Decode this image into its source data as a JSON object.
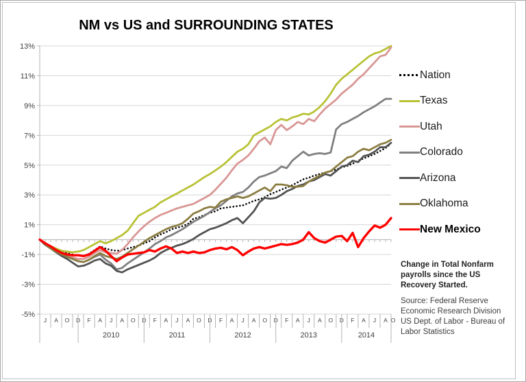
{
  "title": "NM vs US and SURROUNDING STATES",
  "annotation_note": "Change in Total Nonfarm payrolls since the US Recovery Started.",
  "source_note": "Source: Federal Reserve Economic Research Division US Dept. of Labor - Bureau of Labor Statistics",
  "legend": [
    {
      "id": "nation",
      "label": "Nation",
      "color": "#000000",
      "style": "dotted",
      "bold": false
    },
    {
      "id": "texas",
      "label": "Texas",
      "color": "#b8c234",
      "style": "solid",
      "bold": false
    },
    {
      "id": "utah",
      "label": "Utah",
      "color": "#d89694",
      "style": "solid",
      "bold": false
    },
    {
      "id": "colorado",
      "label": "Colorado",
      "color": "#7f7f7f",
      "style": "solid",
      "bold": false
    },
    {
      "id": "arizona",
      "label": "Arizona",
      "color": "#525252",
      "style": "solid",
      "bold": false
    },
    {
      "id": "oklahoma",
      "label": "Oklahoma",
      "color": "#8b7d41",
      "style": "solid",
      "bold": false
    },
    {
      "id": "new-mexico",
      "label": "New Mexico",
      "color": "#fe0000",
      "style": "solid",
      "bold": true
    }
  ],
  "chart_data": {
    "type": "line",
    "title": "NM vs US and SURROUNDING STATES",
    "x_frequency": "monthly",
    "x_range": "Jun 2009 - Oct 2014",
    "ylim": [
      -5,
      13
    ],
    "grid_on": true,
    "legend_position": "right",
    "grid_color": "#d6d6d6",
    "axis_color": "#b3b3b3",
    "yticks": [
      {
        "label": "13%",
        "value": 13
      },
      {
        "label": "11%",
        "value": 11
      },
      {
        "label": "9%",
        "value": 9
      },
      {
        "label": "7%",
        "value": 7
      },
      {
        "label": "5%",
        "value": 5
      },
      {
        "label": "3%",
        "value": 3
      },
      {
        "label": "1%",
        "value": 1
      },
      {
        "label": "-1%",
        "value": -1
      },
      {
        "label": "-3%",
        "value": -3
      },
      {
        "label": "-5%",
        "value": -5
      }
    ],
    "month_labels": [
      "J",
      "A",
      "O",
      "D",
      "F",
      "A",
      "J",
      "A",
      "O",
      "D",
      "F",
      "A",
      "J",
      "A",
      "O",
      "D",
      "F",
      "A",
      "J",
      "A",
      "O",
      "D",
      "F",
      "A",
      "J",
      "A",
      "O",
      "D",
      "F",
      "A",
      "J",
      "A",
      "O"
    ],
    "years": [
      {
        "label": "2010",
        "from_month": 7,
        "to_month": 19
      },
      {
        "label": "2011",
        "from_month": 19,
        "to_month": 31
      },
      {
        "label": "2012",
        "from_month": 31,
        "to_month": 43
      },
      {
        "label": "2013",
        "from_month": 43,
        "to_month": 55
      },
      {
        "label": "2014",
        "from_month": 55,
        "to_month": 64
      }
    ],
    "series": [
      {
        "id": "nation",
        "name": "Nation",
        "color": "#000000",
        "dotted": true,
        "width": 2.6,
        "values": [
          0,
          -0.3,
          -0.5,
          -0.65,
          -0.8,
          -0.9,
          -1,
          -1.05,
          -1.1,
          -0.95,
          -0.7,
          -0.45,
          -0.6,
          -0.7,
          -0.75,
          -0.7,
          -0.6,
          -0.5,
          -0.4,
          -0.25,
          -0.1,
          0.15,
          0.35,
          0.5,
          0.7,
          0.8,
          0.9,
          1.05,
          1.4,
          1.5,
          1.65,
          1.8,
          1.9,
          2.1,
          2.15,
          2.2,
          2.25,
          2.3,
          2.45,
          2.6,
          2.7,
          2.85,
          3.05,
          3.2,
          3.35,
          3.5,
          3.65,
          3.85,
          4.05,
          4.15,
          4.3,
          4.4,
          4.5,
          4.6,
          4.7,
          4.85,
          4.95,
          5.1,
          5.3,
          5.45,
          5.6,
          5.75,
          5.95,
          6.15,
          6.45
        ]
      },
      {
        "id": "texas",
        "name": "Texas",
        "color": "#b8c234",
        "dotted": false,
        "width": 2.8,
        "values": [
          0,
          -0.25,
          -0.45,
          -0.6,
          -0.75,
          -0.8,
          -0.85,
          -0.8,
          -0.7,
          -0.5,
          -0.3,
          -0.1,
          -0.25,
          -0.1,
          0.1,
          0.3,
          0.6,
          1.1,
          1.6,
          1.8,
          2,
          2.2,
          2.5,
          2.7,
          2.9,
          3.1,
          3.3,
          3.5,
          3.7,
          3.95,
          4.2,
          4.4,
          4.65,
          4.9,
          5.2,
          5.55,
          5.9,
          6.1,
          6.4,
          7,
          7.2,
          7.4,
          7.6,
          7.9,
          8.1,
          8,
          8.2,
          8.3,
          8.45,
          8.4,
          8.6,
          8.9,
          9.3,
          9.8,
          10.4,
          10.8,
          11.1,
          11.4,
          11.7,
          12,
          12.3,
          12.5,
          12.6,
          12.8,
          13
        ]
      },
      {
        "id": "utah",
        "name": "Utah",
        "color": "#d89694",
        "dotted": false,
        "width": 2.8,
        "values": [
          0,
          -0.3,
          -0.55,
          -0.75,
          -0.95,
          -1.1,
          -1.2,
          -1.3,
          -1.3,
          -1.15,
          -0.9,
          -0.7,
          -0.85,
          -0.9,
          -0.95,
          -0.7,
          -0.3,
          0.15,
          0.55,
          0.9,
          1.2,
          1.45,
          1.65,
          1.8,
          1.95,
          2.1,
          2.2,
          2.3,
          2.4,
          2.6,
          2.8,
          3,
          3.35,
          3.75,
          4.15,
          4.65,
          5.1,
          5.35,
          5.65,
          6.1,
          6.6,
          6.85,
          6.4,
          7.35,
          7.7,
          7.35,
          7.6,
          7.9,
          7.75,
          8.1,
          7.95,
          8.4,
          8.8,
          9.1,
          9.4,
          9.8,
          10.1,
          10.4,
          10.8,
          11.1,
          11.5,
          11.9,
          12.3,
          12.4,
          12.9
        ]
      },
      {
        "id": "colorado",
        "name": "Colorado",
        "color": "#7f7f7f",
        "dotted": false,
        "width": 2.8,
        "values": [
          0,
          -0.3,
          -0.55,
          -0.8,
          -1,
          -1.15,
          -1.3,
          -1.45,
          -1.5,
          -1.35,
          -1.15,
          -1,
          -1.35,
          -1.6,
          -2,
          -1.9,
          -1.6,
          -1.35,
          -1.1,
          -0.85,
          -0.6,
          -0.3,
          -0.1,
          0.15,
          0.3,
          0.5,
          0.7,
          0.95,
          1.2,
          1.4,
          1.6,
          1.85,
          2.1,
          2.3,
          2.6,
          2.9,
          3.1,
          3.2,
          3.5,
          3.9,
          4.2,
          4.3,
          4.45,
          4.6,
          4.9,
          4.8,
          5.3,
          5.6,
          5.9,
          5.65,
          5.75,
          5.8,
          5.75,
          5.85,
          7.4,
          7.75,
          7.9,
          8.1,
          8.3,
          8.55,
          8.75,
          8.95,
          9.2,
          9.45,
          9.45
        ]
      },
      {
        "id": "arizona",
        "name": "Arizona",
        "color": "#525252",
        "dotted": false,
        "width": 2.8,
        "values": [
          0,
          -0.35,
          -0.6,
          -0.85,
          -1.1,
          -1.3,
          -1.55,
          -1.8,
          -1.75,
          -1.6,
          -1.4,
          -1.3,
          -1.6,
          -1.75,
          -2.1,
          -2.2,
          -2,
          -1.85,
          -1.7,
          -1.55,
          -1.4,
          -1.2,
          -0.9,
          -0.7,
          -0.55,
          -0.4,
          -0.3,
          -0.15,
          0.05,
          0.3,
          0.5,
          0.7,
          0.8,
          0.95,
          1.1,
          1.3,
          1.45,
          1.1,
          1.5,
          1.9,
          2.5,
          2.8,
          2.75,
          2.8,
          3,
          3.25,
          3.4,
          3.6,
          3.7,
          3.9,
          4,
          4.2,
          4.4,
          4.3,
          4.6,
          4.9,
          5,
          5.3,
          5.2,
          5.6,
          5.7,
          5.9,
          6.2,
          6.2,
          6.5
        ]
      },
      {
        "id": "oklahoma",
        "name": "Oklahoma",
        "color": "#8b7d41",
        "dotted": false,
        "width": 2.8,
        "values": [
          0,
          -0.3,
          -0.6,
          -0.8,
          -1,
          -1.15,
          -1.3,
          -1.45,
          -1.5,
          -1.35,
          -1.1,
          -0.9,
          -1.1,
          -1.2,
          -1.3,
          -1.15,
          -0.9,
          -0.65,
          -0.4,
          -0.15,
          0.1,
          0.3,
          0.5,
          0.7,
          0.85,
          0.95,
          1.1,
          1.4,
          1.75,
          1.9,
          2.1,
          2.2,
          2.15,
          2.55,
          2.7,
          2.8,
          2.9,
          2.8,
          2.9,
          3.1,
          3.3,
          3.5,
          3.25,
          3.7,
          3.7,
          3.65,
          3.55,
          3.55,
          3.6,
          3.9,
          4.1,
          4.3,
          4.5,
          4.6,
          4.9,
          5.2,
          5.5,
          5.6,
          5.9,
          6.1,
          6,
          6.2,
          6.4,
          6.5,
          6.7
        ]
      },
      {
        "id": "new-mexico",
        "name": "New Mexico",
        "color": "#fe0000",
        "dotted": false,
        "width": 3.4,
        "values": [
          0,
          -0.25,
          -0.45,
          -0.7,
          -0.9,
          -1,
          -1.05,
          -1.05,
          -1.1,
          -1,
          -0.75,
          -0.5,
          -0.75,
          -1.1,
          -1.45,
          -1.2,
          -1,
          -0.95,
          -0.9,
          -0.85,
          -0.7,
          -0.8,
          -0.6,
          -0.45,
          -0.6,
          -0.9,
          -0.8,
          -0.9,
          -0.8,
          -0.9,
          -0.85,
          -0.7,
          -0.6,
          -0.55,
          -0.65,
          -0.5,
          -0.7,
          -1.05,
          -0.8,
          -0.6,
          -0.5,
          -0.6,
          -0.5,
          -0.4,
          -0.3,
          -0.35,
          -0.3,
          -0.2,
          0,
          0.5,
          0.1,
          -0.1,
          -0.2,
          0,
          0.2,
          0.25,
          -0.1,
          0.45,
          -0.5,
          0.1,
          0.55,
          0.95,
          0.8,
          1,
          1.45
        ]
      }
    ]
  }
}
